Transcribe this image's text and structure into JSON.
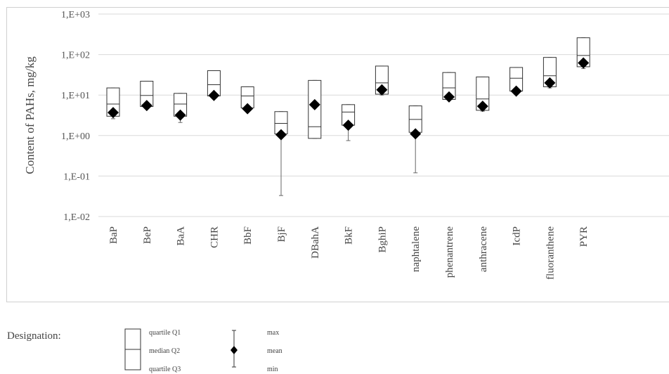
{
  "chart_data": {
    "type": "box",
    "ylabel": "Content of PAHs, mg/kg",
    "yscale": "log",
    "ylim": [
      0.01,
      1000
    ],
    "yticks": [
      0.01,
      0.1,
      1,
      10,
      100,
      1000
    ],
    "ytick_labels": [
      "1,E-02",
      "1,E-01",
      "1,E+00",
      "1,E+01",
      "1,E+02",
      "1,E+03"
    ],
    "grid": true,
    "categories": [
      "BaP",
      "BeP",
      "BaA",
      "CHR",
      "BbF",
      "BjF",
      "DBahA",
      "BkF",
      "BghiP",
      "naphtalene",
      "phenantrene",
      "anthracene",
      "IcdP",
      "fluoranthene",
      "PYR"
    ],
    "q1": [
      3.0,
      5.2,
      3.0,
      9.5,
      4.8,
      1.1,
      0.85,
      1.8,
      10.5,
      1.2,
      7.8,
      4.2,
      12.5,
      16,
      50
    ],
    "median": [
      6.0,
      9.8,
      6.0,
      18,
      9.5,
      2.0,
      1.65,
      3.8,
      20,
      2.5,
      15,
      8.0,
      26,
      30,
      95
    ],
    "q3": [
      15,
      22,
      11,
      40,
      16,
      3.9,
      23,
      5.8,
      52,
      5.4,
      36,
      28,
      48,
      85,
      260
    ],
    "min": [
      2.6,
      5.0,
      2.1,
      9.0,
      4.2,
      0.033,
      0.85,
      0.75,
      10,
      0.12,
      7.5,
      4.0,
      11,
      15,
      45
    ],
    "max": [
      15,
      22,
      11,
      40,
      16,
      3.9,
      23,
      5.8,
      52,
      5.4,
      36,
      28,
      48,
      85,
      260
    ],
    "mean": [
      3.7,
      5.5,
      3.2,
      9.8,
      4.6,
      1.05,
      5.8,
      1.8,
      13.5,
      1.1,
      9.0,
      5.3,
      12.5,
      20,
      62
    ]
  },
  "legend": {
    "title": "Designation:",
    "q1": "quartile Q1",
    "q2": "median Q2",
    "q3": "quartile Q3",
    "max": "max",
    "mean": "mean",
    "min": "min"
  }
}
